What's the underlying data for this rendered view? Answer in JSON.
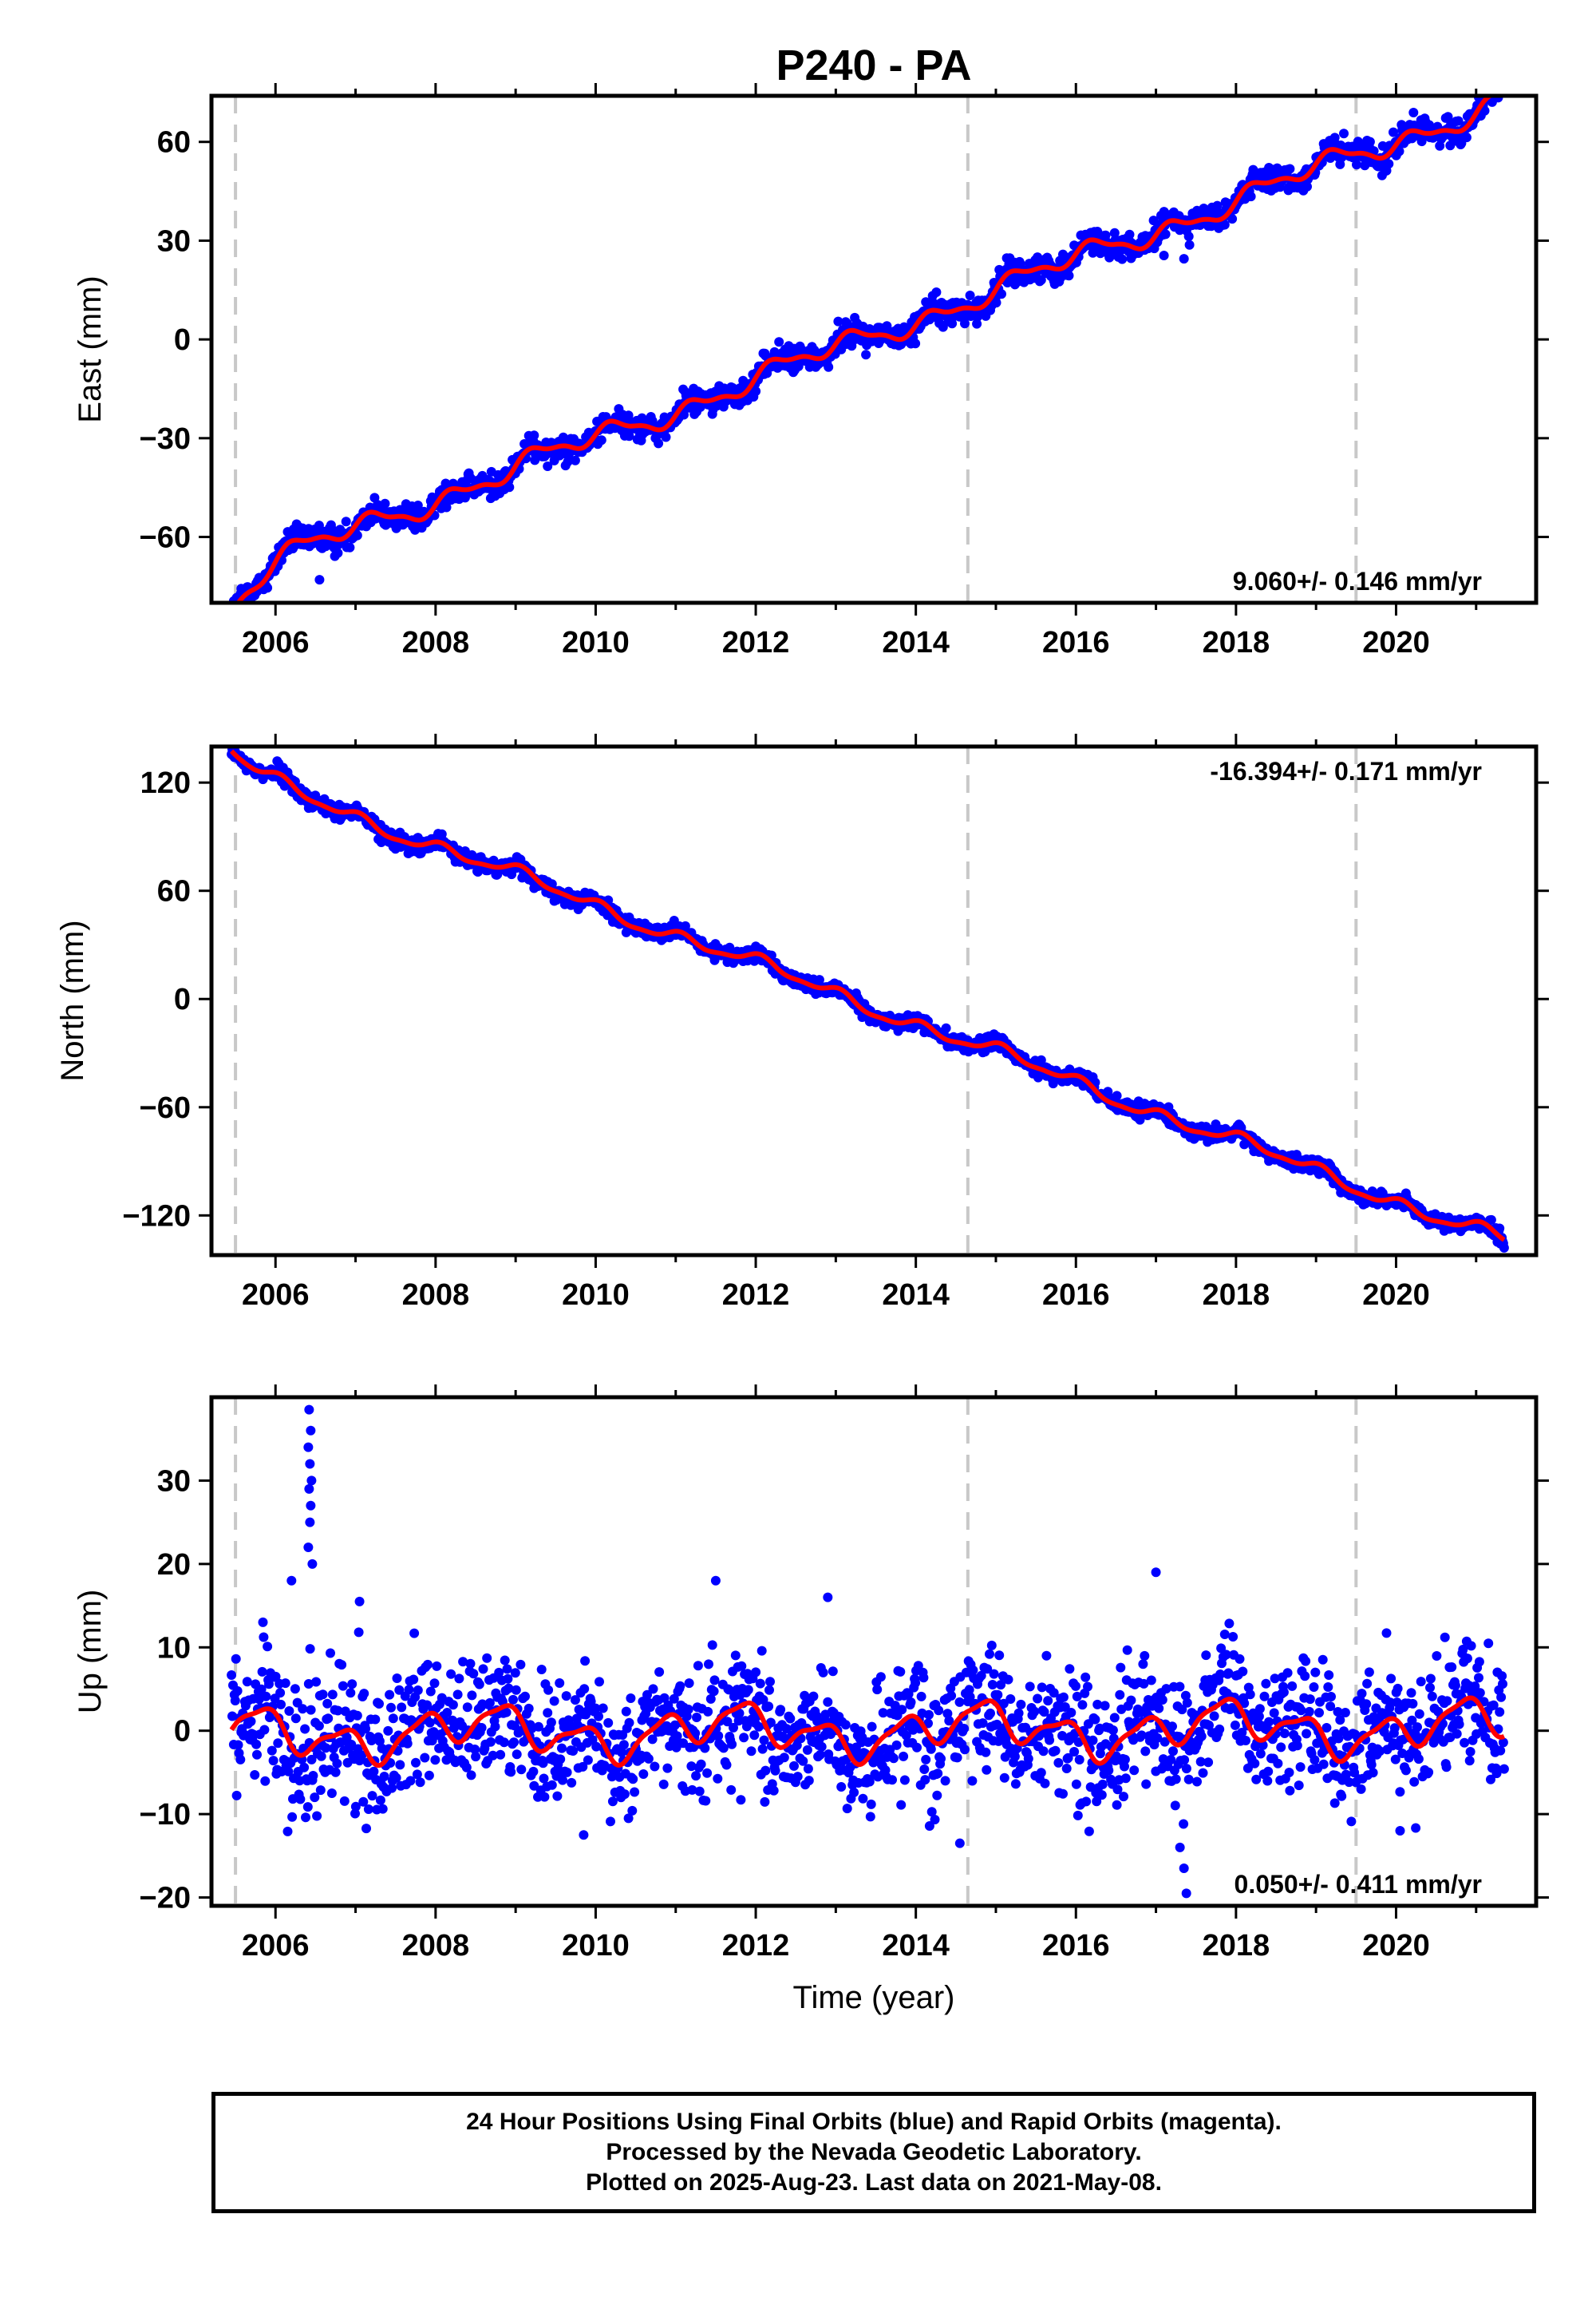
{
  "title": "P240 - PA",
  "xlabel": "Time (year)",
  "footer": {
    "line1": "24 Hour Positions Using Final Orbits (blue) and Rapid Orbits (magenta).",
    "line2": "Processed by the Nevada Geodetic Laboratory.",
    "line3": "Plotted on 2025-Aug-23. Last data on 2021-May-08."
  },
  "colors": {
    "data": "#0000ff",
    "model": "#ff0000",
    "event_lines": "#c8c8c8",
    "frame": "#000000"
  },
  "chart_data": [
    {
      "type": "scatter",
      "ylabel": "East (mm)",
      "rate_label": "9.060+/- 0.146 mm/yr",
      "xlim": [
        2005.2,
        2021.75
      ],
      "ylim": [
        -80,
        74
      ],
      "x_ticks": [
        2006,
        2008,
        2010,
        2012,
        2014,
        2016,
        2018,
        2020
      ],
      "y_ticks": [
        -60,
        -30,
        0,
        30,
        60
      ],
      "event_lines_x": [
        2005.5,
        2014.65,
        2019.5
      ],
      "data_range_x": [
        2005.45,
        2021.35
      ],
      "trend": {
        "rate_mm_per_yr": 9.06,
        "value_at_2013": -3
      },
      "seasonal": {
        "amp_annual": 2.5,
        "amp_semiannual": 1.0,
        "scatter": 2.0
      },
      "model_start_step": {
        "x": 2005.45,
        "offset": -11,
        "decay_yr": 0.35
      },
      "outliers": [
        {
          "x": 2017.35,
          "y": 24.5
        },
        {
          "x": 2017.1,
          "y": 25.5
        },
        {
          "x": 2006.55,
          "y": -73
        },
        {
          "x": 2014.7,
          "y": 10
        }
      ]
    },
    {
      "type": "scatter",
      "ylabel": "North (mm)",
      "rate_label": "-16.394+/- 0.171 mm/yr",
      "xlim": [
        2005.2,
        2021.75
      ],
      "ylim": [
        -142,
        140
      ],
      "x_ticks": [
        2006,
        2008,
        2010,
        2012,
        2014,
        2016,
        2018,
        2020
      ],
      "y_ticks": [
        -120,
        -60,
        0,
        60,
        120
      ],
      "event_lines_x": [
        2005.5,
        2014.65,
        2019.5
      ],
      "data_range_x": [
        2005.45,
        2021.35
      ],
      "trend": {
        "rate_mm_per_yr": -16.394,
        "value_at_2013": 3
      },
      "seasonal": {
        "amp_annual": 3.0,
        "amp_semiannual": 1.0,
        "scatter": 2.2
      },
      "model_start_step": {
        "x": 2005.45,
        "offset": 12,
        "decay_yr": 0.3
      },
      "outliers": [
        {
          "x": 2016.8,
          "y": -67
        },
        {
          "x": 2017.2,
          "y": -70
        }
      ]
    },
    {
      "type": "scatter",
      "ylabel": "Up (mm)",
      "rate_label": "0.050+/- 0.411 mm/yr",
      "xlim": [
        2005.2,
        2021.75
      ],
      "ylim": [
        -21,
        40
      ],
      "x_ticks": [
        2006,
        2008,
        2010,
        2012,
        2014,
        2016,
        2018,
        2020
      ],
      "y_ticks": [
        -20,
        -10,
        0,
        10,
        20,
        30
      ],
      "event_lines_x": [
        2005.5,
        2014.65,
        2019.5
      ],
      "data_range_x": [
        2005.45,
        2021.35
      ],
      "trend": {
        "rate_mm_per_yr": 0.05,
        "value_at_2013": 0
      },
      "seasonal": {
        "amp_annual": 2.0,
        "amp_semiannual": 0.6,
        "scatter": 3.8
      },
      "model_start_step": {
        "x": 2005.45,
        "offset": 0,
        "decay_yr": 0.3
      },
      "outliers": [
        {
          "x": 2006.42,
          "y": 38.5
        },
        {
          "x": 2006.44,
          "y": 36
        },
        {
          "x": 2006.41,
          "y": 34
        },
        {
          "x": 2006.43,
          "y": 32
        },
        {
          "x": 2006.45,
          "y": 30
        },
        {
          "x": 2006.42,
          "y": 29
        },
        {
          "x": 2006.44,
          "y": 27
        },
        {
          "x": 2006.43,
          "y": 25
        },
        {
          "x": 2006.41,
          "y": 22
        },
        {
          "x": 2006.46,
          "y": 20
        },
        {
          "x": 2006.2,
          "y": 18
        },
        {
          "x": 2007.05,
          "y": 15.5
        },
        {
          "x": 2011.5,
          "y": 18
        },
        {
          "x": 2012.9,
          "y": 16
        },
        {
          "x": 2017.0,
          "y": 19
        },
        {
          "x": 2017.35,
          "y": -16.5
        },
        {
          "x": 2017.38,
          "y": -19.5
        },
        {
          "x": 2017.3,
          "y": -14
        },
        {
          "x": 2014.55,
          "y": -13.5
        },
        {
          "x": 2009.85,
          "y": -12.5
        },
        {
          "x": 2020.05,
          "y": -12
        }
      ]
    }
  ]
}
